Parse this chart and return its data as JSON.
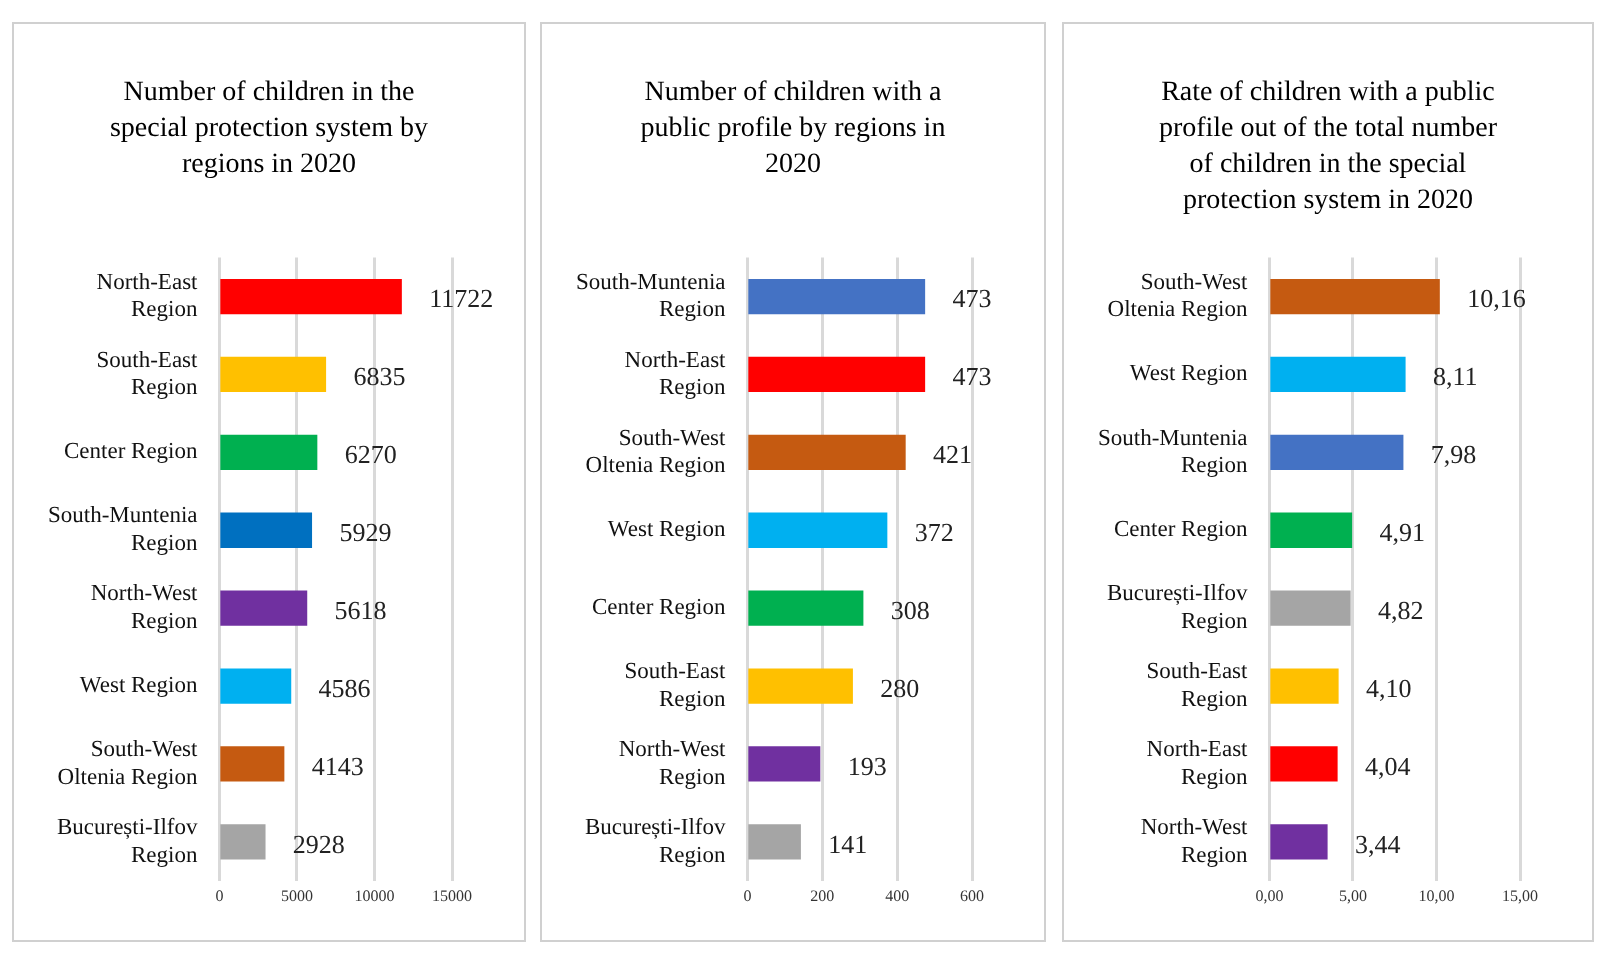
{
  "chart_data": [
    {
      "type": "bar",
      "orientation": "horizontal",
      "title": "Number of children in the special protection system by regions in 2020",
      "categories": [
        "North-East Region",
        "South-East Region",
        "Center Region",
        "South-Muntenia Region",
        "North-West Region",
        "West Region",
        "South-West Oltenia Region",
        "București-Ilfov Region"
      ],
      "values": [
        11722,
        6835,
        6270,
        5929,
        5618,
        4586,
        4143,
        2928
      ],
      "colors": [
        "#ff0000",
        "#ffc000",
        "#00b050",
        "#0070c0",
        "#7030a0",
        "#00b0f0",
        "#c55a11",
        "#a5a5a5"
      ],
      "xlim": [
        0,
        15000
      ],
      "xticks": [
        0,
        5000,
        10000,
        15000
      ],
      "grid": "x",
      "data_labels": true
    },
    {
      "type": "bar",
      "orientation": "horizontal",
      "title": "Number of children with a public profile by regions in 2020",
      "categories": [
        "South-Muntenia Region",
        "North-East Region",
        "South-West Oltenia Region",
        "West Region",
        "Center Region",
        "South-East Region",
        "North-West Region",
        "București-Ilfov Region"
      ],
      "values": [
        473,
        473,
        421,
        372,
        308,
        280,
        193,
        141
      ],
      "colors": [
        "#4472c4",
        "#ff0000",
        "#c55a11",
        "#00b0f0",
        "#00b050",
        "#ffc000",
        "#7030a0",
        "#a5a5a5"
      ],
      "xlim": [
        0,
        600
      ],
      "xticks": [
        0,
        200,
        400,
        600
      ],
      "grid": "x",
      "data_labels": true
    },
    {
      "type": "bar",
      "orientation": "horizontal",
      "title": "Rate of children with a public profile out of the total number of children in the special protection system in 2020",
      "categories": [
        "South-West Oltenia Region",
        "West Region",
        "South-Muntenia Region",
        "Center Region",
        "București-Ilfov Region",
        "South-East Region",
        "North-East Region",
        "North-West Region"
      ],
      "values": [
        10.16,
        8.11,
        7.98,
        4.91,
        4.82,
        4.1,
        4.04,
        3.44
      ],
      "value_labels": [
        "10,16",
        "8,11",
        "7,98",
        "4,91",
        "4,82",
        "4,10",
        "4,04",
        "3,44"
      ],
      "colors": [
        "#c55a11",
        "#00b0f0",
        "#4472c4",
        "#00b050",
        "#a5a5a5",
        "#ffc000",
        "#ff0000",
        "#7030a0"
      ],
      "xlim": [
        0,
        15
      ],
      "xticks": [
        {
          "value": 0,
          "label": "0,00"
        },
        {
          "value": 5,
          "label": "5,00"
        },
        {
          "value": 10,
          "label": "10,00"
        },
        {
          "value": 15,
          "label": "15,00"
        }
      ],
      "grid": "x"
    }
  ]
}
